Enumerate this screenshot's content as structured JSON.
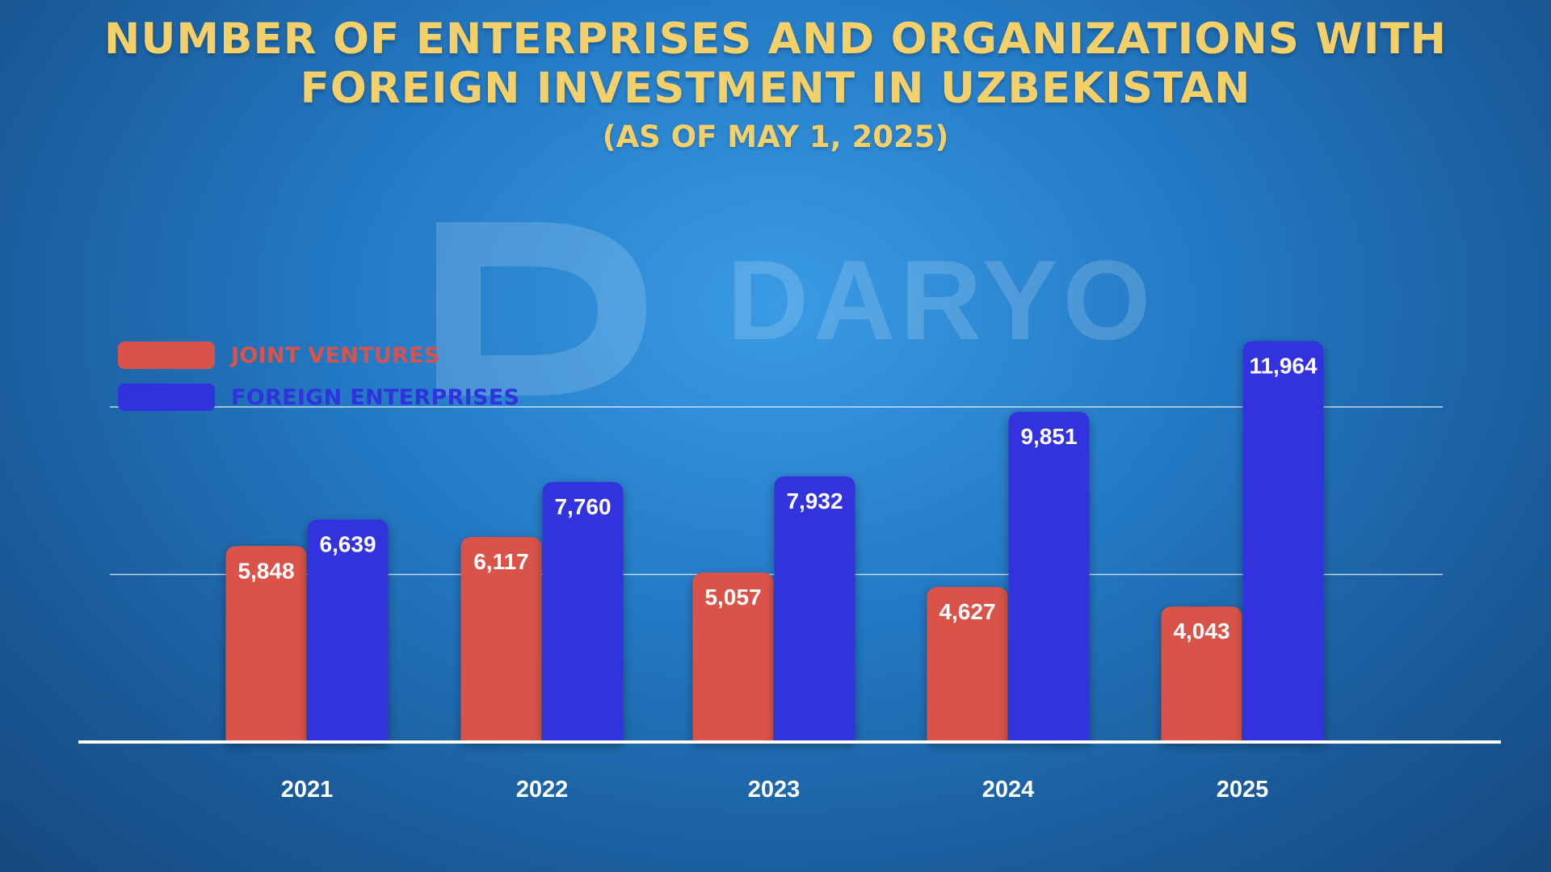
{
  "colors": {
    "joint_ventures": "#d9534a",
    "foreign_enterprises": "#3032de",
    "title": "#f4d06b"
  },
  "header": {
    "title_line1": "NUMBER OF ENTERPRISES AND ORGANIZATIONS WITH",
    "title_line2": "FOREIGN INVESTMENT IN UZBEKISTAN",
    "subtitle": "(AS OF MAY 1, 2025)"
  },
  "watermark": "DARYO",
  "legend": {
    "joint_ventures": "JOINT VENTURES",
    "foreign_enterprises": "FOREIGN ENTERPRISES"
  },
  "chart_data": {
    "type": "bar",
    "categories": [
      "2021",
      "2022",
      "2023",
      "2024",
      "2025"
    ],
    "series": [
      {
        "name": "JOINT VENTURES",
        "values": [
          5848,
          6117,
          5057,
          4627,
          4043
        ],
        "labels": [
          "5,848",
          "6,117",
          "5,057",
          "4,627",
          "4,043"
        ]
      },
      {
        "name": "FOREIGN ENTERPRISES",
        "values": [
          6639,
          7760,
          7932,
          9851,
          11964
        ],
        "labels": [
          "6,639",
          "7,760",
          "7,932",
          "9,851",
          "11,964"
        ]
      }
    ],
    "ylim": [
      0,
      12000
    ],
    "gridlines": [
      5000,
      10000
    ],
    "legend_position": "top-left"
  }
}
